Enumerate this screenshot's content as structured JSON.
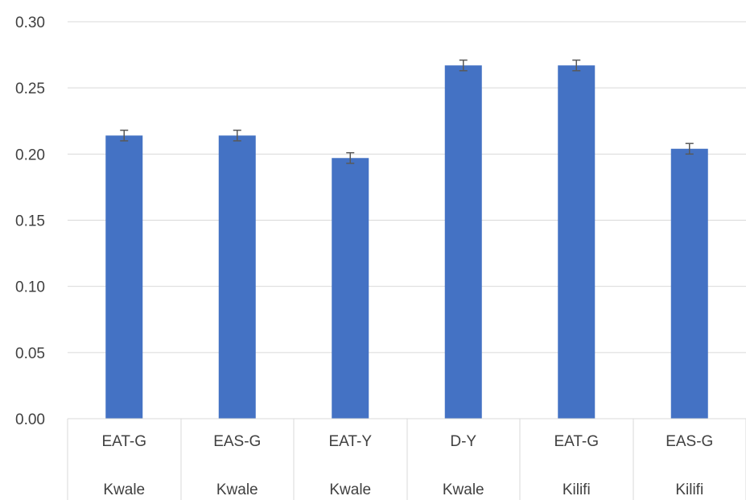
{
  "chart_data": {
    "type": "bar",
    "categories": [
      {
        "label": "EAT-G",
        "group": "Kwale"
      },
      {
        "label": "EAS-G",
        "group": "Kwale"
      },
      {
        "label": "EAT-Y",
        "group": "Kwale"
      },
      {
        "label": "D-Y",
        "group": "Kwale"
      },
      {
        "label": "EAT-G",
        "group": "Kilifi"
      },
      {
        "label": "EAS-G",
        "group": "Kilifi"
      }
    ],
    "series": [
      {
        "values": [
          0.214,
          0.214,
          0.197,
          0.267,
          0.267,
          0.204
        ],
        "error": [
          0.004,
          0.004,
          0.004,
          0.004,
          0.004,
          0.004
        ],
        "color": "#4472C4"
      }
    ],
    "ylim": [
      0,
      0.3
    ],
    "yticks": [
      "0.00",
      "0.05",
      "0.10",
      "0.15",
      "0.20",
      "0.25",
      "0.30"
    ],
    "grid": true,
    "gridColor": "#D9D9D9",
    "errorBarColor": "#595959"
  }
}
